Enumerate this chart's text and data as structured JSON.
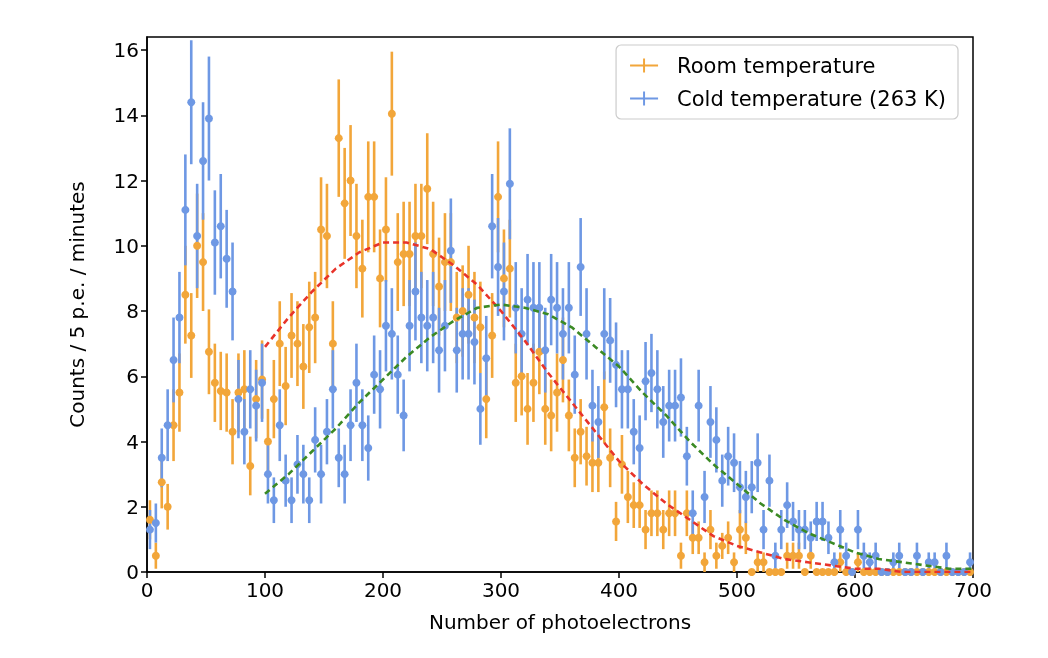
{
  "chart_data": {
    "type": "scatter",
    "xlabel": "Number of photoelectrons",
    "ylabel": "Counts / 5 p.e. / minutes",
    "x": [
      2.5,
      7.5,
      12.5,
      17.5,
      22.5,
      27.5,
      32.5,
      37.5,
      42.5,
      47.5,
      52.5,
      57.5,
      62.5,
      67.5,
      72.5,
      77.5,
      82.5,
      87.5,
      92.5,
      97.5,
      102.5,
      107.5,
      112.5,
      117.5,
      122.5,
      127.5,
      132.5,
      137.5,
      142.5,
      147.5,
      152.5,
      157.5,
      162.5,
      167.5,
      172.5,
      177.5,
      182.5,
      187.5,
      192.5,
      197.5,
      202.5,
      207.5,
      212.5,
      217.5,
      222.5,
      227.5,
      232.5,
      237.5,
      242.5,
      247.5,
      252.5,
      257.5,
      262.5,
      267.5,
      272.5,
      277.5,
      282.5,
      287.5,
      292.5,
      297.5,
      302.5,
      307.5,
      312.5,
      317.5,
      322.5,
      327.5,
      332.5,
      337.5,
      342.5,
      347.5,
      352.5,
      357.5,
      362.5,
      367.5,
      372.5,
      377.5,
      382.5,
      387.5,
      392.5,
      397.5,
      402.5,
      407.5,
      412.5,
      417.5,
      422.5,
      427.5,
      432.5,
      437.5,
      442.5,
      447.5,
      452.5,
      457.5,
      462.5,
      467.5,
      472.5,
      477.5,
      482.5,
      487.5,
      492.5,
      497.5,
      502.5,
      507.5,
      512.5,
      517.5,
      522.5,
      527.5,
      532.5,
      537.5,
      542.5,
      547.5,
      552.5,
      557.5,
      562.5,
      567.5,
      572.5,
      577.5,
      582.5,
      587.5,
      592.5,
      597.5,
      602.5,
      607.5,
      612.5,
      617.5,
      622.5,
      627.5,
      632.5,
      637.5,
      642.5,
      647.5,
      652.5,
      657.5,
      662.5,
      667.5,
      672.5,
      677.5,
      682.5,
      687.5,
      692.5,
      697.5
    ],
    "series": [
      {
        "name": "Room temperature",
        "color": "#f2a63a",
        "values": [
          1.6,
          0.5,
          2.75,
          2.0,
          4.5,
          5.5,
          8.5,
          7.25,
          10.0,
          9.5,
          6.75,
          5.8,
          5.55,
          5.5,
          4.3,
          5.5,
          5.6,
          3.25,
          5.3,
          5.9,
          4.0,
          5.3,
          7.0,
          5.7,
          7.25,
          7.0,
          6.3,
          7.5,
          7.8,
          10.5,
          10.3,
          7.0,
          13.3,
          11.3,
          12.0,
          10.3,
          9.3,
          11.5,
          11.5,
          9.0,
          10.5,
          14.05,
          9.5,
          9.75,
          9.75,
          10.3,
          10.3,
          11.75,
          9.75,
          8.75,
          9.5,
          9.5,
          7.8,
          8.0,
          8.5,
          7.8,
          7.5,
          5.3,
          7.25,
          11.5,
          9.0,
          9.3,
          5.8,
          6.0,
          5.0,
          5.8,
          6.75,
          5.0,
          4.8,
          5.5,
          6.5,
          4.8,
          3.5,
          4.3,
          3.55,
          3.35,
          3.35,
          5.05,
          3.5,
          1.55,
          3.3,
          2.3,
          2.05,
          2.05,
          1.3,
          1.8,
          1.8,
          1.3,
          1.8,
          1.8,
          0.5,
          1.8,
          1.05,
          1.05,
          0.3,
          1.3,
          0.5,
          0.8,
          1.05,
          0.3,
          1.3,
          1.05,
          0,
          0.3,
          0.3,
          0,
          0,
          0,
          0.5,
          0.5,
          0.5,
          0,
          0.5,
          0,
          0,
          0,
          0,
          0.3,
          0,
          0,
          0.3,
          0,
          0,
          0,
          0,
          0,
          0,
          0,
          0,
          0,
          0,
          0,
          0,
          0,
          0,
          0,
          0,
          0,
          0,
          0
        ],
        "errors": [
          0.6,
          0.4,
          0.8,
          0.7,
          1.1,
          1.2,
          1.5,
          1.3,
          1.6,
          1.5,
          1.3,
          1.2,
          1.2,
          1.2,
          1.0,
          1.2,
          1.2,
          0.9,
          1.2,
          1.2,
          1.0,
          1.2,
          1.3,
          1.2,
          1.3,
          1.3,
          1.3,
          1.4,
          1.4,
          1.6,
          1.6,
          1.3,
          1.8,
          1.7,
          1.7,
          1.6,
          1.5,
          1.7,
          1.7,
          1.5,
          1.6,
          1.9,
          1.5,
          1.6,
          1.6,
          1.6,
          1.6,
          1.7,
          1.6,
          1.5,
          1.5,
          1.5,
          1.4,
          1.4,
          1.5,
          1.4,
          1.4,
          1.2,
          1.3,
          1.7,
          1.5,
          1.5,
          1.2,
          1.2,
          1.1,
          1.2,
          1.3,
          1.1,
          1.1,
          1.2,
          1.3,
          1.1,
          0.9,
          1.0,
          0.9,
          0.9,
          0.9,
          1.1,
          0.9,
          0.6,
          0.9,
          0.8,
          0.7,
          0.7,
          0.6,
          0.7,
          0.7,
          0.6,
          0.7,
          0.7,
          0.4,
          0.7,
          0.5,
          0.5,
          0.3,
          0.6,
          0.4,
          0.4,
          0.5,
          0.3,
          0.6,
          0.5,
          null,
          0.3,
          0.3,
          null,
          null,
          null,
          0.4,
          0.4,
          0.4,
          null,
          0.4,
          null,
          null,
          null,
          null,
          0.3,
          null,
          null,
          0.3,
          null,
          null,
          null,
          null,
          null,
          null,
          null,
          null,
          null,
          null,
          null,
          null,
          null,
          null,
          null,
          null,
          null,
          null,
          null
        ]
      },
      {
        "name": "Cold temperature (263 K)",
        "color": "#6e98e4",
        "values": [
          1.3,
          1.5,
          3.5,
          4.5,
          6.5,
          7.8,
          11.1,
          14.4,
          10.3,
          12.6,
          13.9,
          10.1,
          10.6,
          9.6,
          8.6,
          5.3,
          4.3,
          5.6,
          5.1,
          5.8,
          3.0,
          2.2,
          4.5,
          2.8,
          2.2,
          3.3,
          3.0,
          2.2,
          4.05,
          3.0,
          4.3,
          5.6,
          3.5,
          3.0,
          4.5,
          5.8,
          4.5,
          3.8,
          6.05,
          5.6,
          7.55,
          7.3,
          6.05,
          4.8,
          7.55,
          8.6,
          7.8,
          7.55,
          7.8,
          6.8,
          7.55,
          9.85,
          6.8,
          7.3,
          7.3,
          7.05,
          5.0,
          6.55,
          10.6,
          9.35,
          8.6,
          11.9,
          8.1,
          7.3,
          8.35,
          8.1,
          8.1,
          6.8,
          8.35,
          8.1,
          7.3,
          8.1,
          6.05,
          9.35,
          7.3,
          5.1,
          4.6,
          7.3,
          7.1,
          6.35,
          5.6,
          5.6,
          4.3,
          3.8,
          5.85,
          6.1,
          5.6,
          4.6,
          5.1,
          5.1,
          5.35,
          3.55,
          1.8,
          5.1,
          2.3,
          4.6,
          4.05,
          2.8,
          3.55,
          3.35,
          2.6,
          2.3,
          2.6,
          3.35,
          1.3,
          2.8,
          0.5,
          1.3,
          2.05,
          1.55,
          1.3,
          1.3,
          1.05,
          1.55,
          1.55,
          1.05,
          0.3,
          1.3,
          0.5,
          0,
          1.3,
          0.5,
          0.3,
          0.5,
          0,
          0,
          0.3,
          0.5,
          0,
          0,
          0.5,
          0,
          0.3,
          0.3,
          0,
          0.5,
          0,
          0,
          0,
          0.3
        ],
        "errors": [
          0.6,
          0.6,
          0.9,
          1.1,
          1.3,
          1.4,
          1.7,
          1.9,
          1.6,
          1.8,
          1.9,
          1.6,
          1.6,
          1.5,
          1.5,
          1.2,
          1.0,
          1.2,
          1.1,
          1.2,
          0.9,
          0.7,
          1.1,
          0.8,
          0.7,
          0.9,
          0.9,
          0.7,
          1.0,
          0.9,
          1.0,
          1.2,
          0.9,
          0.9,
          1.1,
          1.2,
          1.1,
          1.0,
          1.2,
          1.2,
          1.4,
          1.4,
          1.2,
          1.1,
          1.4,
          1.5,
          1.4,
          1.4,
          1.4,
          1.3,
          1.4,
          1.6,
          1.3,
          1.4,
          1.4,
          1.3,
          1.1,
          1.3,
          1.6,
          1.5,
          1.5,
          1.7,
          1.4,
          1.4,
          1.4,
          1.4,
          1.4,
          1.3,
          1.4,
          1.4,
          1.4,
          1.4,
          1.2,
          1.5,
          1.4,
          1.1,
          1.1,
          1.4,
          1.3,
          1.3,
          1.2,
          1.2,
          1.0,
          1.0,
          1.2,
          1.2,
          1.2,
          1.1,
          1.1,
          1.1,
          1.2,
          0.9,
          0.7,
          1.1,
          0.8,
          1.1,
          1.0,
          0.8,
          0.9,
          0.9,
          0.8,
          0.8,
          0.8,
          0.9,
          0.6,
          0.8,
          0.4,
          0.6,
          0.7,
          0.6,
          0.6,
          0.6,
          0.5,
          0.6,
          0.6,
          0.5,
          0.3,
          0.6,
          0.4,
          null,
          0.6,
          0.4,
          0.3,
          0.4,
          null,
          null,
          0.3,
          0.4,
          null,
          null,
          0.4,
          null,
          0.3,
          0.3,
          null,
          0.4,
          null,
          null,
          null,
          0.3
        ]
      },
      {
        "type": "line",
        "color": "#e8332a",
        "line_style": "dashed",
        "marker": "none",
        "x": [
          100,
          120,
          140,
          160,
          180,
          200,
          220,
          240,
          260,
          280,
          300,
          320,
          340,
          360,
          380,
          400,
          420,
          440,
          460,
          480,
          500,
          520,
          540,
          560,
          580,
          600,
          620,
          640,
          660,
          680,
          700
        ],
        "values": [
          6.9,
          7.8,
          8.6,
          9.3,
          9.8,
          10.1,
          10.1,
          9.9,
          9.4,
          8.8,
          8.0,
          7.1,
          6.1,
          5.2,
          4.3,
          3.4,
          2.7,
          2.1,
          1.6,
          1.1,
          0.8,
          0.6,
          0.4,
          0.3,
          0.2,
          0.1,
          0.1,
          0,
          0,
          0,
          0
        ]
      },
      {
        "type": "line",
        "color": "#3b8a24",
        "line_style": "dashed",
        "marker": "none",
        "x": [
          100,
          120,
          140,
          160,
          180,
          200,
          220,
          240,
          260,
          280,
          300,
          320,
          340,
          360,
          380,
          400,
          420,
          440,
          460,
          480,
          500,
          520,
          540,
          560,
          580,
          600,
          620,
          640,
          660,
          680,
          700
        ],
        "values": [
          2.4,
          3.0,
          3.7,
          4.4,
          5.2,
          5.9,
          6.6,
          7.2,
          7.7,
          8.1,
          8.2,
          8.1,
          7.9,
          7.5,
          6.9,
          6.3,
          5.5,
          4.8,
          4.0,
          3.3,
          2.7,
          2.1,
          1.6,
          1.2,
          0.9,
          0.6,
          0.4,
          0.3,
          0.2,
          0.1,
          0.1
        ]
      }
    ],
    "xlim": [
      0,
      700
    ],
    "xticks": [
      0,
      100,
      200,
      300,
      400,
      500,
      600,
      700
    ],
    "ylim": [
      0,
      16.4
    ],
    "yticks": [
      0,
      2,
      4,
      6,
      8,
      10,
      12,
      14,
      16
    ],
    "grid": false,
    "legend": "top right",
    "marker": "circle"
  }
}
